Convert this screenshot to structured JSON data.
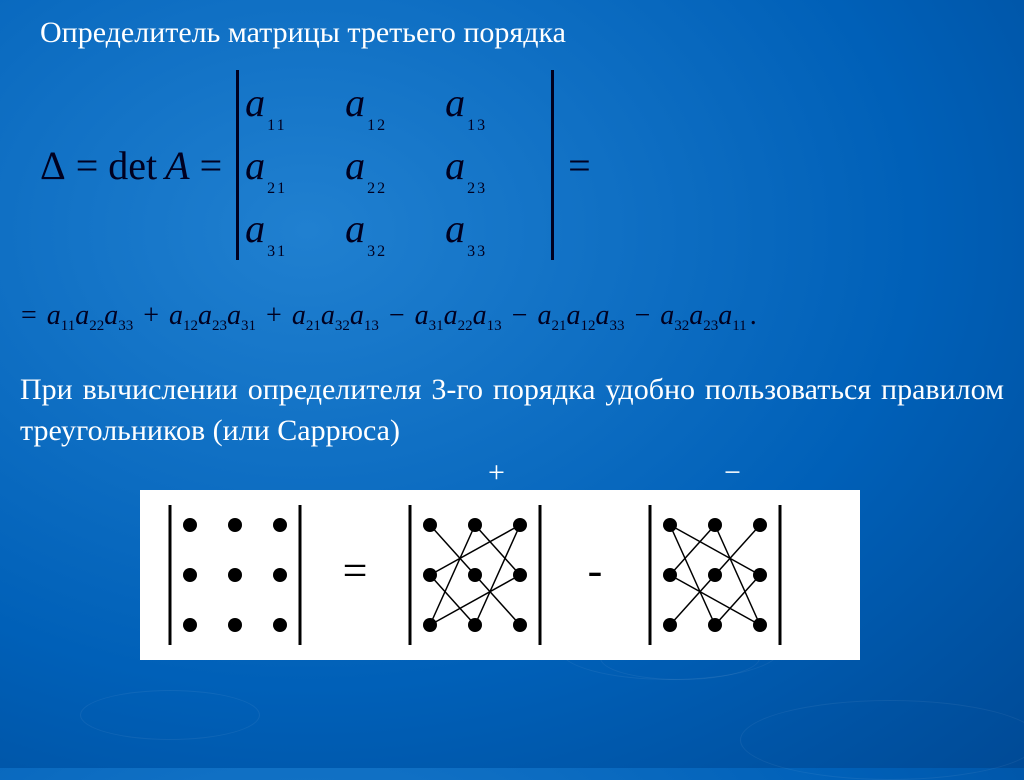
{
  "title": "Определитель матрицы третьего порядка",
  "eq": {
    "delta": "Δ",
    "eq": "=",
    "det": "det",
    "A": "A"
  },
  "matrix": {
    "r1": {
      "c1_base": "a",
      "c1_sub": "11",
      "c2_base": "a",
      "c2_sub": "12",
      "c3_base": "a",
      "c3_sub": "13"
    },
    "r2": {
      "c1_base": "a",
      "c1_sub": "21",
      "c2_base": "a",
      "c2_sub": "22",
      "c3_base": "a",
      "c3_sub": "23"
    },
    "r3": {
      "c1_base": "a",
      "c1_sub": "31",
      "c2_base": "a",
      "c2_sub": "32",
      "c3_base": "a",
      "c3_sub": "33"
    }
  },
  "terms": [
    {
      "lead": "= ",
      "a": "a",
      "as": "11",
      "b": "a",
      "bs": "22",
      "c": "a",
      "cs": "33"
    },
    {
      "lead": " + ",
      "a": "a",
      "as": "12",
      "b": "a",
      "bs": "23",
      "c": "a",
      "cs": "31"
    },
    {
      "lead": " + ",
      "a": "a",
      "as": "21",
      "b": "a",
      "bs": "32",
      "c": "a",
      "cs": "13"
    },
    {
      "lead": " − ",
      "a": "a",
      "as": "31",
      "b": "a",
      "bs": "22",
      "c": "a",
      "cs": "13"
    },
    {
      "lead": " − ",
      "a": "a",
      "as": "21",
      "b": "a",
      "bs": "12",
      "c": "a",
      "cs": "33"
    },
    {
      "lead": " − ",
      "a": "a",
      "as": "32",
      "b": "a",
      "bs": "23",
      "c": "a",
      "cs": "11"
    }
  ],
  "tail": ".",
  "paragraph": "При вычислении определителя 3-го порядка удобно пользоваться правилом треугольников (или Саррюса)",
  "signs": {
    "plus": "+",
    "minus": "−"
  },
  "diagram": {
    "bg": "#ffffff",
    "dot_color": "#000000",
    "line_color": "#000000",
    "bar_color": "#000000",
    "dot_r": 7,
    "block": {
      "cols": [
        30,
        75,
        120
      ],
      "rows": [
        35,
        85,
        135
      ],
      "bar_x": [
        10,
        140
      ],
      "bar_y": [
        15,
        155
      ]
    },
    "ops": {
      "eq": "=",
      "minus": "-"
    },
    "plus_lines": [
      [
        30,
        35,
        75,
        85
      ],
      [
        75,
        85,
        120,
        135
      ],
      [
        75,
        35,
        120,
        85
      ],
      [
        120,
        85,
        30,
        135
      ],
      [
        30,
        135,
        75,
        35
      ],
      [
        120,
        35,
        30,
        85
      ],
      [
        30,
        85,
        75,
        135
      ],
      [
        75,
        135,
        120,
        35
      ]
    ],
    "minus_lines": [
      [
        120,
        35,
        75,
        85
      ],
      [
        75,
        85,
        30,
        135
      ],
      [
        75,
        35,
        30,
        85
      ],
      [
        30,
        85,
        120,
        135
      ],
      [
        120,
        135,
        75,
        35
      ],
      [
        30,
        35,
        120,
        85
      ],
      [
        120,
        85,
        75,
        135
      ],
      [
        75,
        135,
        30,
        35
      ]
    ]
  },
  "colors": {
    "text_dark": "#000020",
    "text_light": "#ffffff"
  }
}
